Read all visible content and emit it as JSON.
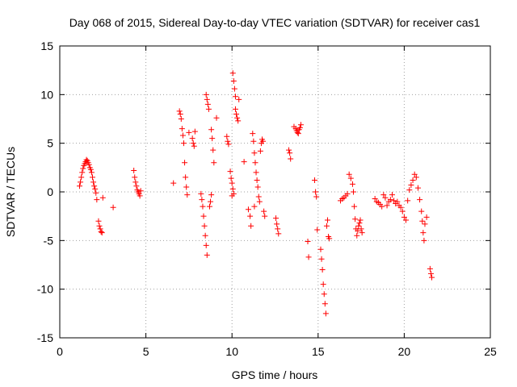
{
  "chart_data": {
    "type": "scatter",
    "title": "Day 068 of 2015, Sidereal Day-to-day VTEC variation (SDTVAR) for receiver cas1",
    "xlabel": "GPS time / hours",
    "ylabel": "SDTVAR / TECUs",
    "xlim": [
      0,
      25
    ],
    "ylim": [
      -15,
      15
    ],
    "xticks": [
      0,
      5,
      10,
      15,
      20,
      25
    ],
    "yticks": [
      -15,
      -10,
      -5,
      0,
      5,
      10,
      15
    ],
    "xtick_labels": [
      "0",
      "5",
      "10",
      "15",
      "20",
      "25"
    ],
    "ytick_labels": [
      "-15",
      "-10",
      "-5",
      "0",
      "5",
      "10",
      "15"
    ],
    "grid": true,
    "marker": "plus",
    "color": "#ff0000",
    "series": [
      {
        "name": "SDTVAR",
        "points": [
          [
            1.15,
            0.6
          ],
          [
            1.2,
            1.0
          ],
          [
            1.25,
            1.5
          ],
          [
            1.3,
            2.0
          ],
          [
            1.35,
            2.4
          ],
          [
            1.4,
            2.7
          ],
          [
            1.45,
            2.9
          ],
          [
            1.5,
            3.1
          ],
          [
            1.55,
            3.3
          ],
          [
            1.6,
            3.2
          ],
          [
            1.65,
            3.0
          ],
          [
            1.7,
            2.8
          ],
          [
            1.75,
            2.5
          ],
          [
            1.8,
            2.3
          ],
          [
            1.85,
            2.0
          ],
          [
            1.9,
            1.5
          ],
          [
            1.95,
            1.0
          ],
          [
            2.0,
            0.6
          ],
          [
            2.05,
            0.3
          ],
          [
            2.1,
            -0.1
          ],
          [
            2.15,
            -0.8
          ],
          [
            2.25,
            -3.0
          ],
          [
            2.3,
            -3.5
          ],
          [
            2.35,
            -3.8
          ],
          [
            2.4,
            -4.1
          ],
          [
            2.45,
            -4.2
          ],
          [
            2.5,
            -0.6
          ],
          [
            3.1,
            -1.6
          ],
          [
            4.3,
            2.2
          ],
          [
            4.35,
            1.5
          ],
          [
            4.4,
            1.0
          ],
          [
            4.45,
            0.6
          ],
          [
            4.5,
            0.2
          ],
          [
            4.55,
            0.0
          ],
          [
            4.6,
            -0.2
          ],
          [
            4.65,
            -0.4
          ],
          [
            4.7,
            0.1
          ],
          [
            6.6,
            0.9
          ],
          [
            6.95,
            8.3
          ],
          [
            7.0,
            8.0
          ],
          [
            7.05,
            7.5
          ],
          [
            7.1,
            6.5
          ],
          [
            7.15,
            5.8
          ],
          [
            7.2,
            5.0
          ],
          [
            7.25,
            3.0
          ],
          [
            7.3,
            1.5
          ],
          [
            7.35,
            0.5
          ],
          [
            7.4,
            -0.3
          ],
          [
            7.5,
            6.1
          ],
          [
            7.7,
            5.5
          ],
          [
            7.75,
            5.0
          ],
          [
            7.8,
            4.7
          ],
          [
            7.85,
            6.2
          ],
          [
            8.2,
            -0.2
          ],
          [
            8.25,
            -0.8
          ],
          [
            8.3,
            -1.5
          ],
          [
            8.35,
            -2.5
          ],
          [
            8.4,
            -3.5
          ],
          [
            8.45,
            -4.5
          ],
          [
            8.5,
            -5.5
          ],
          [
            8.55,
            -6.5
          ],
          [
            8.5,
            10.0
          ],
          [
            8.55,
            9.5
          ],
          [
            8.6,
            9.0
          ],
          [
            8.65,
            8.5
          ],
          [
            8.7,
            -1.5
          ],
          [
            8.75,
            -1.0
          ],
          [
            8.8,
            -0.3
          ],
          [
            8.8,
            6.4
          ],
          [
            8.85,
            5.5
          ],
          [
            8.9,
            4.3
          ],
          [
            8.95,
            3.0
          ],
          [
            9.1,
            7.6
          ],
          [
            9.7,
            5.7
          ],
          [
            9.75,
            5.2
          ],
          [
            9.8,
            4.9
          ],
          [
            9.9,
            2.1
          ],
          [
            9.95,
            1.4
          ],
          [
            10.0,
            0.9
          ],
          [
            10.05,
            0.3
          ],
          [
            10.1,
            -0.2
          ],
          [
            10.0,
            -0.4
          ],
          [
            10.05,
            12.2
          ],
          [
            10.1,
            11.4
          ],
          [
            10.15,
            10.6
          ],
          [
            10.2,
            9.8
          ],
          [
            10.2,
            8.5
          ],
          [
            10.25,
            8.0
          ],
          [
            10.3,
            7.6
          ],
          [
            10.35,
            7.3
          ],
          [
            10.4,
            9.5
          ],
          [
            10.7,
            3.1
          ],
          [
            10.95,
            -1.8
          ],
          [
            11.05,
            -2.5
          ],
          [
            11.1,
            -3.5
          ],
          [
            11.2,
            6.0
          ],
          [
            11.25,
            5.2
          ],
          [
            11.3,
            4.0
          ],
          [
            11.3,
            -1.5
          ],
          [
            11.35,
            3.0
          ],
          [
            11.4,
            2.0
          ],
          [
            11.45,
            1.2
          ],
          [
            11.5,
            0.5
          ],
          [
            11.55,
            -0.5
          ],
          [
            11.6,
            -1.0
          ],
          [
            11.65,
            4.2
          ],
          [
            11.7,
            5.0
          ],
          [
            11.75,
            5.4
          ],
          [
            11.8,
            5.2
          ],
          [
            11.85,
            -2.0
          ],
          [
            11.9,
            -2.5
          ],
          [
            12.55,
            -2.7
          ],
          [
            12.6,
            -3.3
          ],
          [
            12.65,
            -3.8
          ],
          [
            12.7,
            -4.3
          ],
          [
            13.3,
            4.3
          ],
          [
            13.35,
            4.0
          ],
          [
            13.4,
            3.4
          ],
          [
            13.6,
            6.7
          ],
          [
            13.7,
            6.5
          ],
          [
            13.75,
            6.3
          ],
          [
            13.8,
            6.1
          ],
          [
            13.85,
            6.0
          ],
          [
            13.9,
            6.4
          ],
          [
            13.95,
            6.6
          ],
          [
            14.0,
            6.9
          ],
          [
            14.4,
            -5.1
          ],
          [
            14.45,
            -6.7
          ],
          [
            14.8,
            1.2
          ],
          [
            14.85,
            0.0
          ],
          [
            14.9,
            -0.5
          ],
          [
            14.95,
            -3.9
          ],
          [
            15.15,
            -5.9
          ],
          [
            15.2,
            -6.9
          ],
          [
            15.25,
            -8.0
          ],
          [
            15.3,
            -9.5
          ],
          [
            15.35,
            -10.5
          ],
          [
            15.4,
            -11.5
          ],
          [
            15.45,
            -12.5
          ],
          [
            15.5,
            -3.5
          ],
          [
            15.55,
            -2.9
          ],
          [
            15.6,
            -4.6
          ],
          [
            15.65,
            -4.8
          ],
          [
            16.3,
            -0.9
          ],
          [
            16.4,
            -0.7
          ],
          [
            16.5,
            -0.6
          ],
          [
            16.6,
            -0.4
          ],
          [
            16.7,
            -0.2
          ],
          [
            16.8,
            1.8
          ],
          [
            16.9,
            1.4
          ],
          [
            17.0,
            0.8
          ],
          [
            17.05,
            0.0
          ],
          [
            17.1,
            -1.5
          ],
          [
            17.15,
            -2.8
          ],
          [
            17.2,
            -3.8
          ],
          [
            17.25,
            -4.5
          ],
          [
            17.3,
            -4.0
          ],
          [
            17.35,
            -3.5
          ],
          [
            17.4,
            -3.2
          ],
          [
            17.45,
            -2.9
          ],
          [
            17.5,
            -3.8
          ],
          [
            17.55,
            -4.2
          ],
          [
            18.3,
            -0.7
          ],
          [
            18.4,
            -1.0
          ],
          [
            18.5,
            -1.1
          ],
          [
            18.6,
            -1.3
          ],
          [
            18.7,
            -1.5
          ],
          [
            18.8,
            -0.3
          ],
          [
            18.9,
            -0.6
          ],
          [
            19.0,
            -1.4
          ],
          [
            19.1,
            -1.0
          ],
          [
            19.2,
            -0.8
          ],
          [
            19.3,
            -0.3
          ],
          [
            19.4,
            -0.9
          ],
          [
            19.5,
            -1.2
          ],
          [
            19.6,
            -1.0
          ],
          [
            19.7,
            -1.4
          ],
          [
            19.8,
            -1.6
          ],
          [
            19.9,
            -2.0
          ],
          [
            20.0,
            -2.6
          ],
          [
            20.1,
            -2.9
          ],
          [
            20.2,
            -0.9
          ],
          [
            20.3,
            0.2
          ],
          [
            20.4,
            0.7
          ],
          [
            20.5,
            1.2
          ],
          [
            20.6,
            1.8
          ],
          [
            20.7,
            1.5
          ],
          [
            20.8,
            0.4
          ],
          [
            20.9,
            -0.8
          ],
          [
            21.0,
            -2.0
          ],
          [
            21.05,
            -3.0
          ],
          [
            21.1,
            -4.2
          ],
          [
            21.15,
            -5.0
          ],
          [
            21.2,
            -3.3
          ],
          [
            21.3,
            -2.6
          ],
          [
            21.5,
            -7.9
          ],
          [
            21.55,
            -8.4
          ],
          [
            21.6,
            -8.8
          ]
        ]
      }
    ]
  }
}
